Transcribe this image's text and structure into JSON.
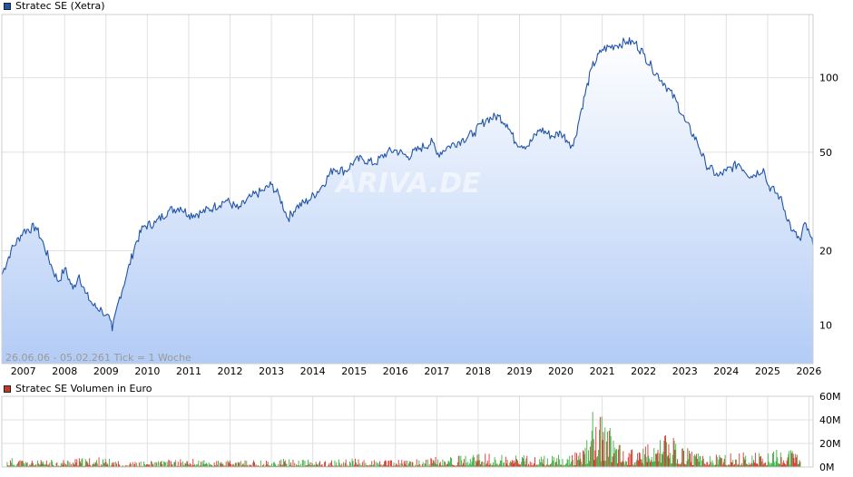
{
  "price_chart": {
    "legend": "Stratec SE (Xetra)",
    "legend_color": "#2154a8",
    "range_text": "26.06.06 - 05.02.26",
    "tick_text": "1 Tick = 1 Woche",
    "watermark": "ARIVA.DE"
  },
  "volume_chart": {
    "legend": "Stratec SE Volumen in Euro",
    "legend_color": "#c0392b"
  },
  "colors": {
    "line": "#2154a8",
    "fill_top": "#ffffff",
    "fill_bottom": "#b3ccf5",
    "grid": "#e0e0e0",
    "vol_up": "#3cb043",
    "vol_down": "#d9342b"
  },
  "chart_data": [
    {
      "type": "line",
      "series": [
        {
          "name": "Stratec SE (Xetra)",
          "x": [
            2006.48,
            2006.7,
            2007.0,
            2007.3,
            2007.5,
            2007.7,
            2007.85,
            2008.0,
            2008.2,
            2008.35,
            2008.5,
            2008.7,
            2008.9,
            2009.0,
            2009.1,
            2009.15,
            2009.3,
            2009.5,
            2009.7,
            2009.9,
            2010.2,
            2010.5,
            2010.8,
            2011.0,
            2011.3,
            2011.6,
            2011.9,
            2012.2,
            2012.5,
            2012.8,
            2013.0,
            2013.2,
            2013.4,
            2013.6,
            2013.9,
            2014.2,
            2014.5,
            2014.8,
            2015.0,
            2015.2,
            2015.5,
            2015.8,
            2016.0,
            2016.3,
            2016.6,
            2016.9,
            2017.0,
            2017.3,
            2017.6,
            2017.9,
            2018.2,
            2018.5,
            2018.7,
            2018.9,
            2019.2,
            2019.5,
            2019.8,
            2020.0,
            2020.2,
            2020.3,
            2020.5,
            2020.75,
            2021.0,
            2021.3,
            2021.6,
            2021.8,
            2022.0,
            2022.2,
            2022.5,
            2022.8,
            2023.0,
            2023.3,
            2023.5,
            2023.8,
            2024.0,
            2024.3,
            2024.6,
            2024.9,
            2025.0,
            2025.3,
            2025.6,
            2025.8,
            2025.9,
            2026.1
          ],
          "values": [
            16,
            20,
            24,
            25,
            21,
            17,
            15,
            17,
            14,
            16,
            13.5,
            12,
            11.5,
            11,
            10.5,
            9.5,
            12.5,
            16,
            21,
            25,
            26,
            29,
            30,
            28,
            28.5,
            30,
            32,
            29.5,
            33,
            35,
            37,
            33,
            27,
            30,
            32,
            36,
            43,
            42,
            46,
            47,
            45,
            50,
            51,
            48,
            52,
            55,
            49,
            53,
            56,
            60,
            68,
            70,
            65,
            55,
            53,
            62,
            58,
            60,
            55,
            53,
            75,
            110,
            130,
            135,
            140,
            138,
            125,
            110,
            95,
            80,
            67,
            55,
            45,
            40,
            42,
            45,
            40,
            43,
            37,
            33,
            24,
            22,
            26,
            21
          ]
        }
      ],
      "xlim": [
        2006.48,
        2026.1
      ],
      "ylim": [
        7,
        180
      ],
      "y_scale": "log",
      "x_ticks": [
        "2007",
        "2008",
        "2009",
        "2010",
        "2011",
        "2012",
        "2013",
        "2014",
        "2015",
        "2016",
        "2017",
        "2018",
        "2019",
        "2020",
        "2021",
        "2022",
        "2023",
        "2024",
        "2025",
        "2026"
      ],
      "y_ticks": [
        10,
        20,
        50,
        100
      ],
      "grid": true
    },
    {
      "type": "bar",
      "series": [
        {
          "name": "Stratec SE Volumen in Euro",
          "x": [
            2006.6,
            2007.3,
            2008.0,
            2008.8,
            2009.5,
            2010.2,
            2011.0,
            2011.8,
            2012.6,
            2013.4,
            2014.2,
            2015.0,
            2015.8,
            2016.6,
            2017.4,
            2018.2,
            2019.0,
            2019.8,
            2020.3,
            2020.6,
            2020.8,
            2021.0,
            2021.2,
            2021.4,
            2021.6,
            2022.0,
            2022.3,
            2022.6,
            2023.0,
            2023.5,
            2024.0,
            2024.5,
            2025.0,
            2025.4,
            2025.8
          ],
          "values": [
            6,
            4,
            5,
            6,
            3,
            4,
            5,
            4,
            4,
            5,
            4,
            5,
            4,
            5,
            7,
            8,
            7,
            7,
            9,
            14,
            40,
            30,
            28,
            20,
            10,
            12,
            16,
            20,
            12,
            7,
            8,
            9,
            8,
            12,
            10
          ]
        }
      ],
      "xlim": [
        2006.48,
        2026.1
      ],
      "ylim": [
        0,
        60
      ],
      "y_ticks": [
        "0M",
        "20M",
        "40M",
        "60M"
      ],
      "y_values": [
        0,
        20,
        40,
        60
      ],
      "grid": true
    }
  ]
}
